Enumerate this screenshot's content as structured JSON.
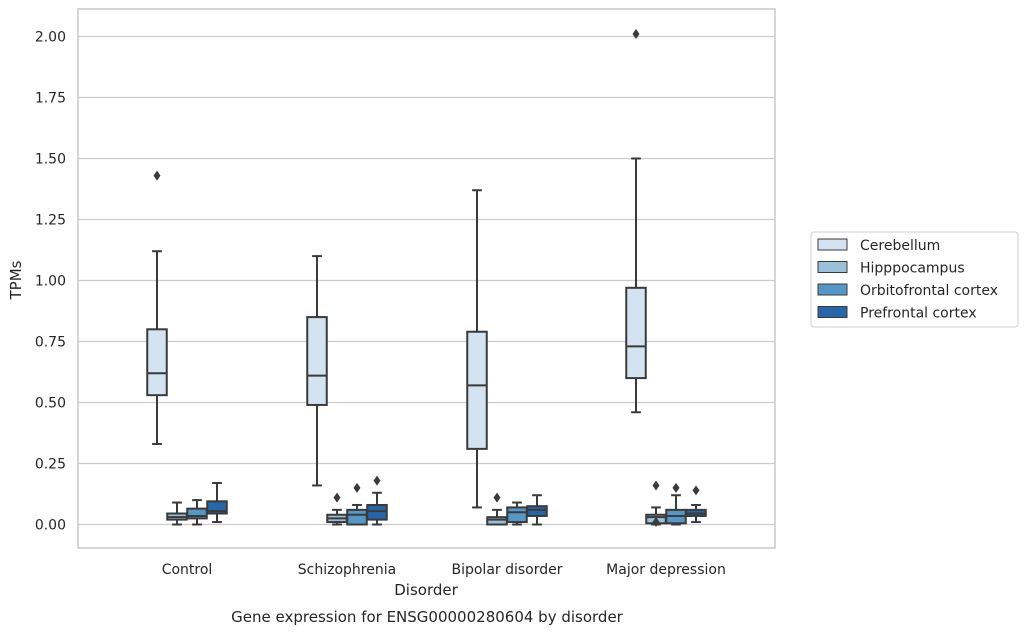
{
  "chart_data": {
    "type": "box",
    "title": "Gene expression for ENSG00000280604 by disorder",
    "xlabel": "Disorder",
    "ylabel": "TPMs",
    "ylim": [
      -0.1,
      2.11
    ],
    "yticks": [
      "0.00",
      "0.25",
      "0.50",
      "0.75",
      "1.00",
      "1.25",
      "1.50",
      "1.75",
      "2.00"
    ],
    "ytick_values": [
      0,
      0.25,
      0.5,
      0.75,
      1.0,
      1.25,
      1.5,
      1.75,
      2.0
    ],
    "grid": "horizontal",
    "legend_position": "right",
    "categories": [
      "Control",
      "Schizophrenia",
      "Bipolar disorder",
      "Major depression"
    ],
    "series": [
      {
        "name": "Cerebellum",
        "color": "#d4e3f2",
        "boxes": [
          {
            "whislo": 0.33,
            "q1": 0.53,
            "med": 0.62,
            "q3": 0.8,
            "whishi": 1.12,
            "fliers": [
              1.43
            ]
          },
          {
            "whislo": 0.16,
            "q1": 0.49,
            "med": 0.61,
            "q3": 0.85,
            "whishi": 1.1,
            "fliers": []
          },
          {
            "whislo": 0.07,
            "q1": 0.31,
            "med": 0.57,
            "q3": 0.79,
            "whishi": 1.37,
            "fliers": []
          },
          {
            "whislo": 0.46,
            "q1": 0.6,
            "med": 0.73,
            "q3": 0.97,
            "whishi": 1.5,
            "fliers": [
              2.01
            ]
          }
        ]
      },
      {
        "name": "Hipppocampus",
        "color": "#9ac0da",
        "boxes": [
          {
            "whislo": 0.0,
            "q1": 0.02,
            "med": 0.03,
            "q3": 0.045,
            "whishi": 0.09,
            "fliers": []
          },
          {
            "whislo": 0.0,
            "q1": 0.01,
            "med": 0.025,
            "q3": 0.04,
            "whishi": 0.06,
            "fliers": [
              0.11
            ]
          },
          {
            "whislo": 0.0,
            "q1": 0.0,
            "med": 0.02,
            "q3": 0.03,
            "whishi": 0.06,
            "fliers": [
              0.11
            ]
          },
          {
            "whislo": 0.0,
            "q1": 0.005,
            "med": 0.03,
            "q3": 0.04,
            "whishi": 0.07,
            "fliers": [
              0.16,
              0.01
            ]
          }
        ]
      },
      {
        "name": "Orbitofrontal cortex",
        "color": "#5598c8",
        "boxes": [
          {
            "whislo": 0.0,
            "q1": 0.025,
            "med": 0.035,
            "q3": 0.065,
            "whishi": 0.1,
            "fliers": []
          },
          {
            "whislo": 0.0,
            "q1": 0.0,
            "med": 0.04,
            "q3": 0.06,
            "whishi": 0.08,
            "fliers": [
              0.15
            ]
          },
          {
            "whislo": 0.0,
            "q1": 0.01,
            "med": 0.05,
            "q3": 0.07,
            "whishi": 0.09,
            "fliers": []
          },
          {
            "whislo": 0.0,
            "q1": 0.005,
            "med": 0.035,
            "q3": 0.06,
            "whishi": 0.12,
            "fliers": [
              0.15
            ]
          }
        ]
      },
      {
        "name": "Prefrontal cortex",
        "color": "#2766a8",
        "boxes": [
          {
            "whislo": 0.01,
            "q1": 0.045,
            "med": 0.055,
            "q3": 0.095,
            "whishi": 0.17,
            "fliers": []
          },
          {
            "whislo": 0.0,
            "q1": 0.02,
            "med": 0.055,
            "q3": 0.08,
            "whishi": 0.13,
            "fliers": [
              0.18
            ]
          },
          {
            "whislo": 0.0,
            "q1": 0.035,
            "med": 0.06,
            "q3": 0.075,
            "whishi": 0.12,
            "fliers": []
          },
          {
            "whislo": 0.01,
            "q1": 0.035,
            "med": 0.045,
            "q3": 0.06,
            "whishi": 0.08,
            "fliers": [
              0.14
            ]
          }
        ]
      }
    ]
  }
}
